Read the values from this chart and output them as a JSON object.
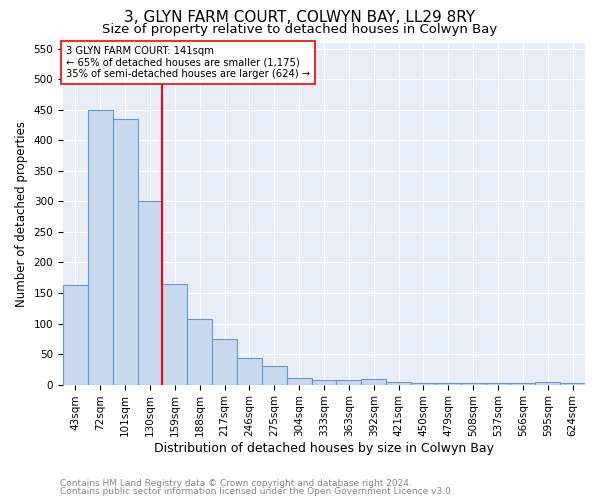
{
  "title": "3, GLYN FARM COURT, COLWYN BAY, LL29 8RY",
  "subtitle": "Size of property relative to detached houses in Colwyn Bay",
  "xlabel": "Distribution of detached houses by size in Colwyn Bay",
  "ylabel": "Number of detached properties",
  "categories": [
    "43sqm",
    "72sqm",
    "101sqm",
    "130sqm",
    "159sqm",
    "188sqm",
    "217sqm",
    "246sqm",
    "275sqm",
    "304sqm",
    "333sqm",
    "363sqm",
    "392sqm",
    "421sqm",
    "450sqm",
    "479sqm",
    "508sqm",
    "537sqm",
    "566sqm",
    "595sqm",
    "624sqm"
  ],
  "values": [
    163,
    450,
    435,
    300,
    165,
    107,
    74,
    43,
    31,
    10,
    8,
    8,
    9,
    4,
    3,
    2,
    2,
    2,
    2,
    4,
    2
  ],
  "bar_color": "#c8d8ee",
  "bar_edge_color": "#6699cc",
  "red_line_x": 3.5,
  "annotation_line1": "3 GLYN FARM COURT: 141sqm",
  "annotation_line2": "← 65% of detached houses are smaller (1,175)",
  "annotation_line3": "35% of semi-detached houses are larger (624) →",
  "ylim": [
    0,
    560
  ],
  "yticks": [
    0,
    50,
    100,
    150,
    200,
    250,
    300,
    350,
    400,
    450,
    500,
    550
  ],
  "title_fontsize": 11,
  "subtitle_fontsize": 9.5,
  "xlabel_fontsize": 9,
  "ylabel_fontsize": 8.5,
  "tick_fontsize": 7.5,
  "footer_line1": "Contains HM Land Registry data © Crown copyright and database right 2024.",
  "footer_line2": "Contains public sector information licensed under the Open Government Licence v3.0.",
  "background_color": "#ffffff",
  "plot_bg_color": "#e8eef8",
  "grid_color": "#ffffff",
  "footer_color": "#888888"
}
